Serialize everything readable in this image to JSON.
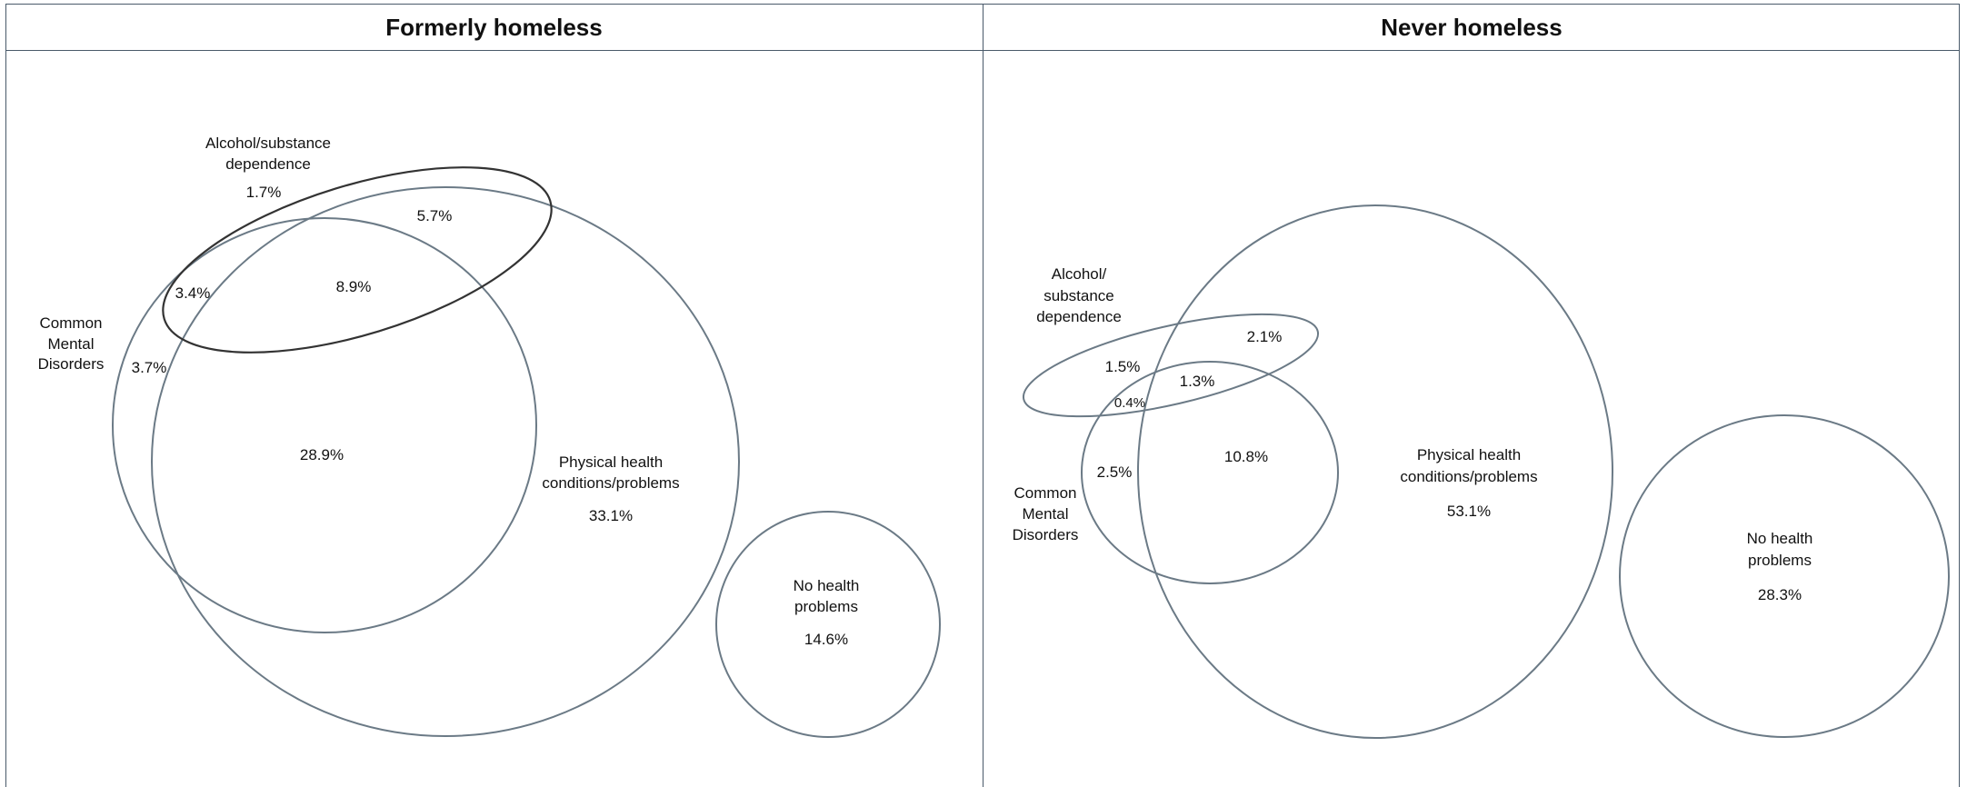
{
  "panels": {
    "left": {
      "title": "Formerly homeless",
      "labels": {
        "alcohol_line1": "Alcohol/substance",
        "alcohol_line2": "dependence",
        "cmd_line1": "Common",
        "cmd_line2": "Mental",
        "cmd_line3": "Disorders",
        "physical_line1": "Physical health",
        "physical_line2": "conditions/problems",
        "nohealth_line1": "No health",
        "nohealth_line2": "problems"
      },
      "values": {
        "alcohol_only": "1.7%",
        "alcohol_physical": "5.7%",
        "alcohol_cmd": "3.4%",
        "alcohol_cmd_physical": "8.9%",
        "cmd_only": "3.7%",
        "cmd_physical": "28.9%",
        "physical_only": "33.1%",
        "no_health": "14.6%"
      }
    },
    "right": {
      "title": "Never homeless",
      "labels": {
        "alcohol_line1": "Alcohol/",
        "alcohol_line2": "substance",
        "alcohol_line3": "dependence",
        "cmd_line1": "Common",
        "cmd_line2": "Mental",
        "cmd_line3": "Disorders",
        "physical_line1": "Physical health",
        "physical_line2": "conditions/problems",
        "nohealth_line1": "No health",
        "nohealth_line2": "problems"
      },
      "values": {
        "alcohol_physical": "2.1%",
        "alcohol_only": "1.5%",
        "alcohol_cmd_physical": "1.3%",
        "alcohol_cmd": "0.4%",
        "cmd_only": "2.5%",
        "cmd_physical": "10.8%",
        "physical_only": "53.1%",
        "no_health": "28.3%"
      }
    }
  },
  "colors": {
    "outline": "#6b7a86",
    "alcohol_outline_left": "#333333",
    "text": "#111111",
    "frame": "#4a5a6a"
  }
}
